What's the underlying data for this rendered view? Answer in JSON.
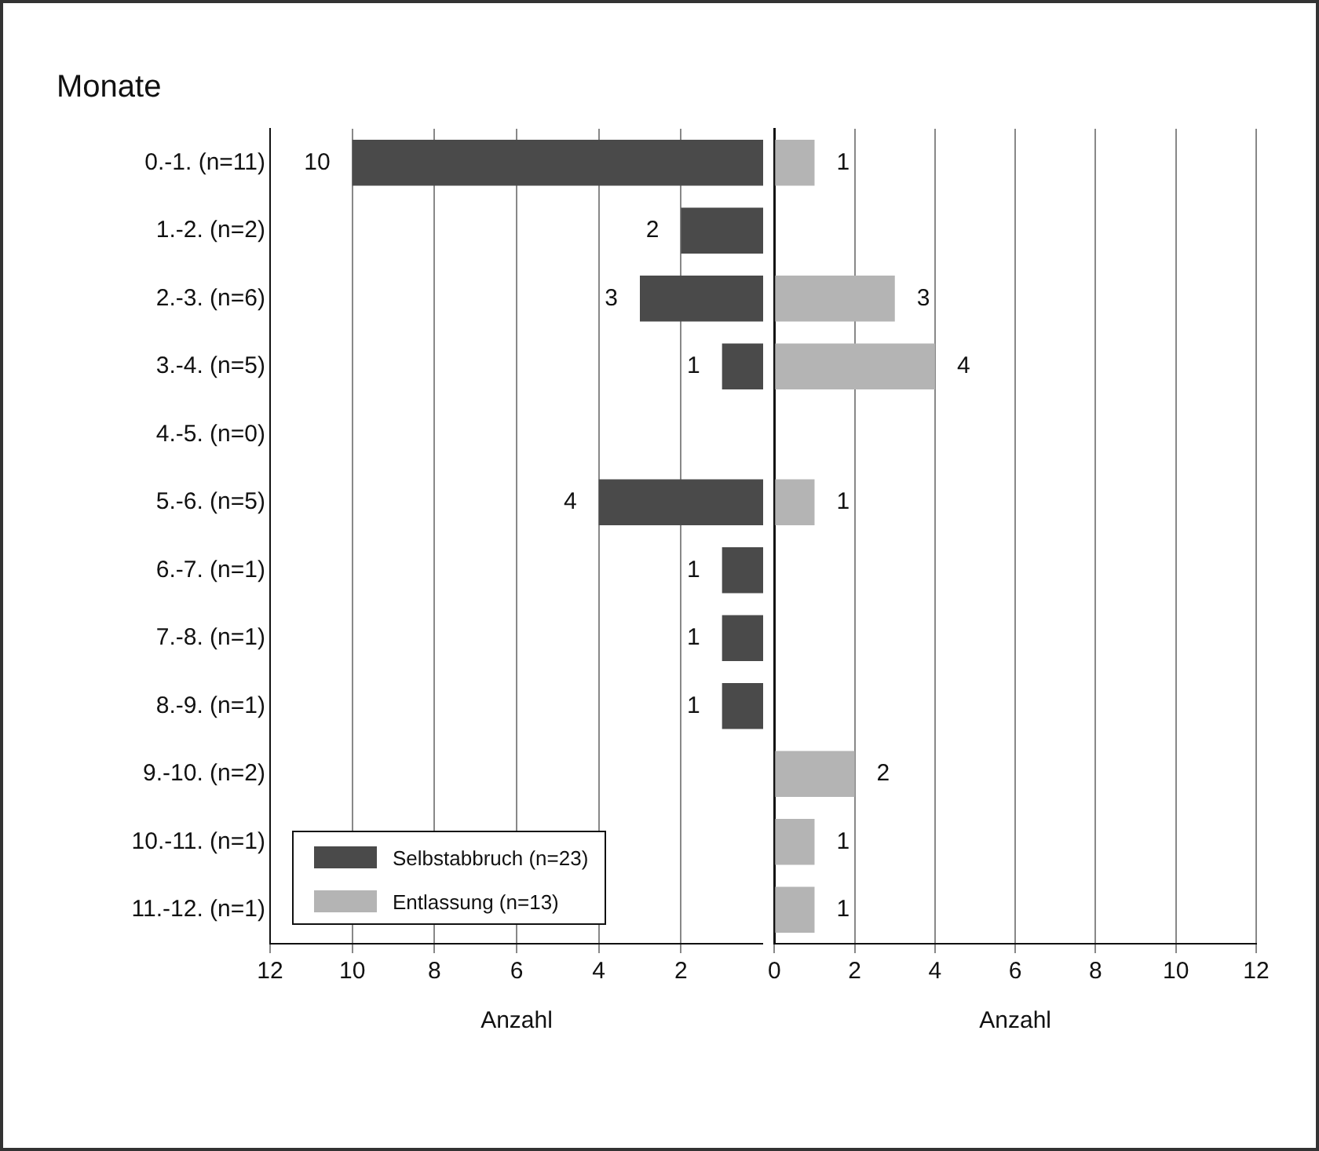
{
  "chart_data": [
    {
      "type": "bar",
      "orientation": "horizontal",
      "ylabel": "Monate",
      "xlabel": "Anzahl",
      "legend": "bottom left",
      "grid": "x",
      "categories": [
        "0.-1. (n=11)",
        "1.-2. (n=2)",
        "2.-3. (n=6)",
        "3.-4. (n=5)",
        "4.-5. (n=0)",
        "5.-6. (n=5)",
        "6.-7. (n=1)",
        "7.-8. (n=1)",
        "8.-9. (n=1)",
        "9.-10. (n=2)",
        "10.-11. (n=1)",
        "11.-12. (n=1)"
      ],
      "series": [
        {
          "name": "Selbstabbruch (n=23)",
          "color": "#4a4a4a",
          "values": [
            10,
            2,
            3,
            1,
            null,
            4,
            1,
            1,
            1,
            null,
            null,
            null
          ]
        }
      ],
      "data_labels": true,
      "xlim": [
        12,
        0
      ],
      "xticks": [
        12,
        10,
        8,
        6,
        4,
        2
      ]
    },
    {
      "type": "bar",
      "orientation": "horizontal",
      "xlabel": "Anzahl",
      "grid": "x",
      "tick_labels": "x",
      "series": [
        {
          "name": "Entlassung (n=13)",
          "color": "#b4b4b4",
          "values": [
            1,
            null,
            3,
            4,
            null,
            1,
            null,
            null,
            null,
            2,
            1,
            1
          ]
        }
      ],
      "data_labels": true,
      "xlim": [
        0,
        12
      ],
      "xticks": [
        0,
        2,
        4,
        6,
        8,
        10,
        12
      ]
    }
  ]
}
